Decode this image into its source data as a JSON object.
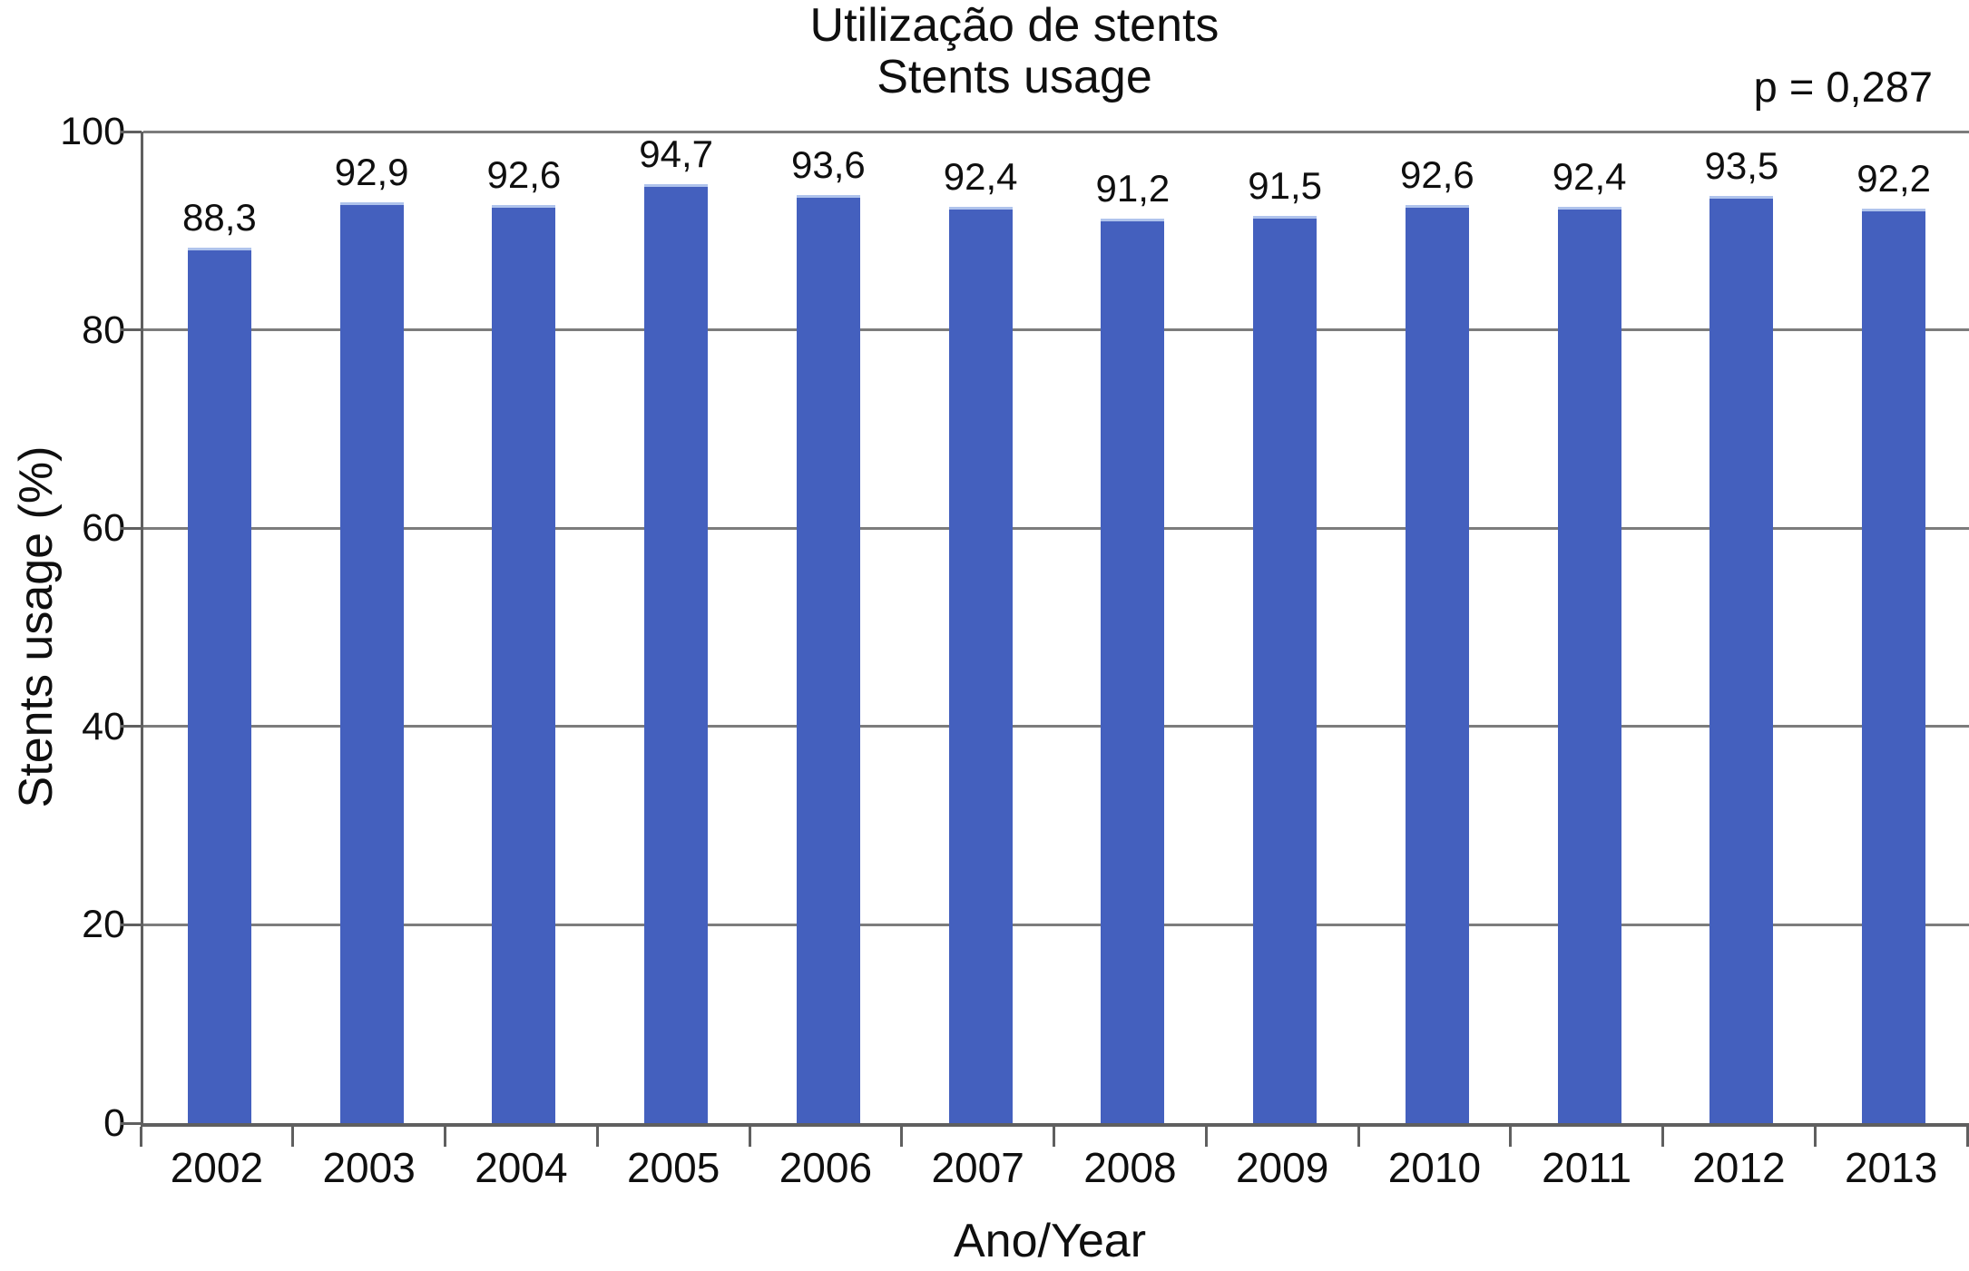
{
  "figure": {
    "title_lines": [
      "Utilização de stents",
      "Stents usage"
    ],
    "p_value": "p = 0,287",
    "xlabel": "Ano/Year",
    "ylabel": "Stents usage (%)"
  },
  "chart_data": {
    "type": "bar",
    "title": "Utilização de stents / Stents usage",
    "categories": [
      "2002",
      "2003",
      "2004",
      "2005",
      "2006",
      "2007",
      "2008",
      "2009",
      "2010",
      "2011",
      "2012",
      "2013"
    ],
    "values": [
      88.3,
      92.9,
      92.6,
      94.7,
      93.6,
      92.4,
      91.2,
      91.5,
      92.6,
      92.4,
      93.5,
      92.2
    ],
    "value_labels": [
      "88,3",
      "92,9",
      "92,6",
      "94,7",
      "93,6",
      "92,4",
      "91,2",
      "91,5",
      "92,6",
      "92,4",
      "93,5",
      "92,2"
    ],
    "xlabel": "Ano/Year",
    "ylabel": "Stents usage (%)",
    "ylim": [
      0,
      100
    ],
    "yticks": [
      0,
      20,
      40,
      60,
      80,
      100
    ],
    "grid": true,
    "legend_position": "none",
    "annotation": "p = 0,287",
    "colors": {
      "bar": "#4460BE",
      "bar_top_edge": "#AFC3EC",
      "grid": "#7c7c7c",
      "axis": "#5f5f5f",
      "text": "#0f0f0f"
    }
  }
}
